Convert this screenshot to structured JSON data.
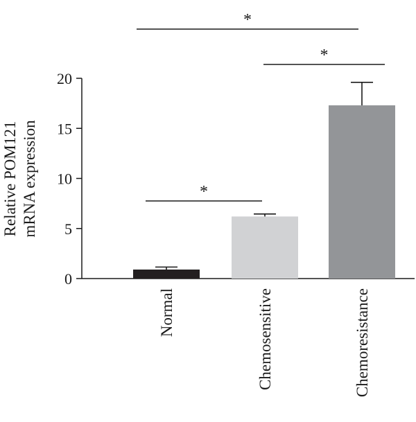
{
  "chart_data": {
    "type": "bar",
    "categories": [
      "Normal",
      "Chemosensitive",
      "Chemoresistance"
    ],
    "values": [
      0.9,
      6.2,
      17.3
    ],
    "errors": [
      0.25,
      0.25,
      2.3
    ],
    "colors": [
      "#231f20",
      "#d1d2d4",
      "#939598"
    ],
    "ylabel": [
      "Relative POM121",
      "mRNA expression"
    ],
    "ylim": [
      0,
      20
    ],
    "yticks": [
      0,
      5,
      10,
      15,
      20
    ],
    "significance": [
      {
        "from": 0,
        "to": 1,
        "label": "*"
      },
      {
        "from": 1,
        "to": 2,
        "label": "*"
      },
      {
        "from": 0,
        "to": 2,
        "label": "*"
      }
    ],
    "grid": false
  }
}
